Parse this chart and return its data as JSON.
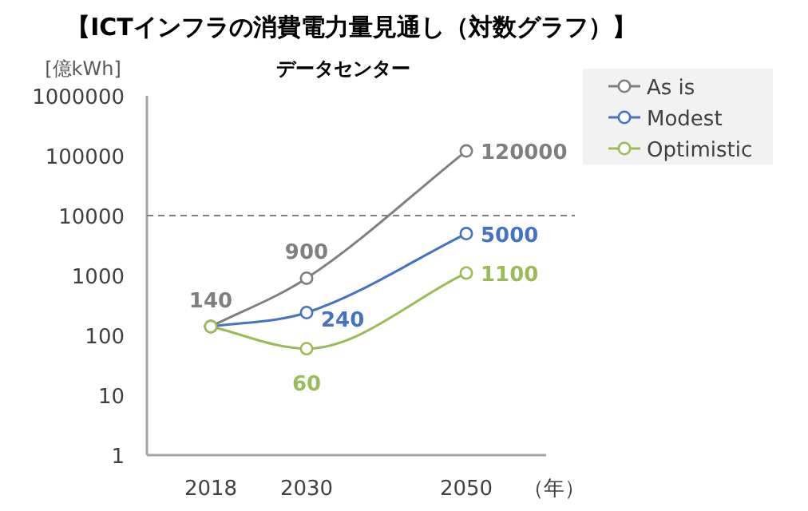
{
  "chart_data": {
    "type": "line",
    "title": "【ICTインフラの消費電力量見通し（対数グラフ）】",
    "subtitle": "データセンター",
    "ylabel": "[億kWh]",
    "xlabel": "（年）",
    "x": [
      2018,
      2030,
      2050
    ],
    "xlim": [
      2010,
      2060
    ],
    "xticks": [
      2018,
      2030,
      2050
    ],
    "log": true,
    "ylim": [
      1,
      1000000
    ],
    "yticks": [
      1,
      10,
      100,
      1000,
      10000,
      100000,
      1000000
    ],
    "grid": false,
    "legend": "top right",
    "marker": "circle",
    "line_style": "solid",
    "ref_lines": [
      {
        "axis": "y",
        "value": 10000,
        "color": "#7f7f7f",
        "line_style": "dashed"
      }
    ],
    "series": [
      {
        "name": "As is",
        "color": "#7f7f7f",
        "values": [
          140,
          900,
          120000
        ],
        "value_labels": [
          "140",
          "900",
          "120000"
        ]
      },
      {
        "name": "Modest",
        "color": "#4472c4",
        "values": [
          140,
          240,
          5000
        ],
        "value_labels": [
          null,
          "240",
          "5000"
        ]
      },
      {
        "name": "Optimistic",
        "color": "#9bbb59",
        "values": [
          140,
          60,
          1100
        ],
        "value_labels": [
          null,
          "60",
          "1100"
        ]
      }
    ]
  }
}
